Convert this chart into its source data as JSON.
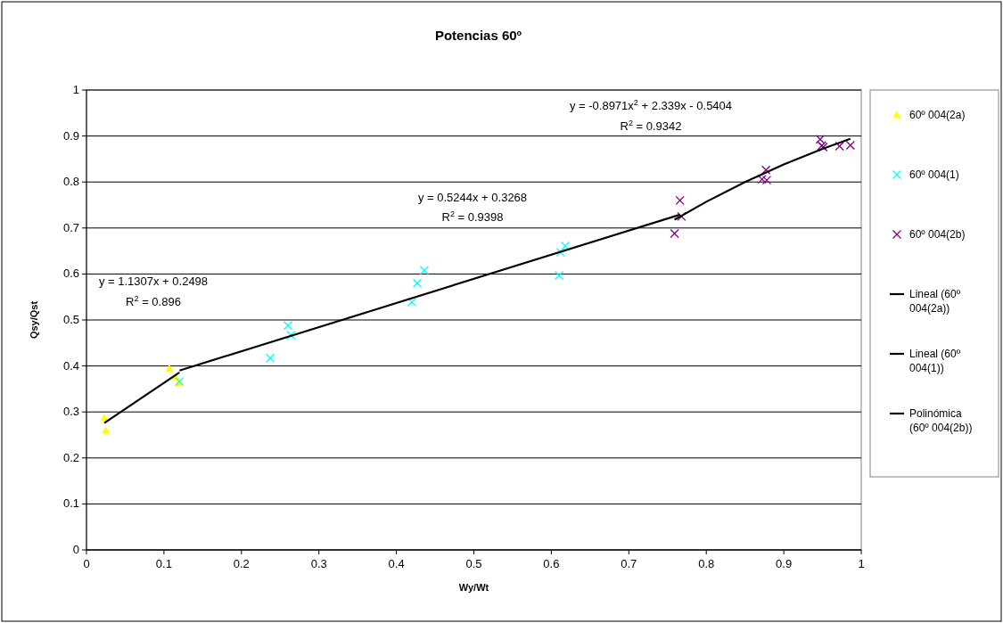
{
  "chart_data": {
    "type": "scatter",
    "title": "Potencias 60º",
    "xlabel": "Wy/Wt",
    "ylabel": "Qsy/Qst",
    "xlim": [
      0,
      1
    ],
    "ylim": [
      0,
      1
    ],
    "xticks": [
      0,
      0.1,
      0.2,
      0.3,
      0.4,
      0.5,
      0.6,
      0.7,
      0.8,
      0.9,
      1
    ],
    "yticks": [
      0,
      0.1,
      0.2,
      0.3,
      0.4,
      0.5,
      0.6,
      0.7,
      0.8,
      0.9,
      1
    ],
    "grid": "y",
    "legend": "right",
    "series": [
      {
        "name": "60º 004(2a)",
        "marker": "triangle",
        "color": "#ffff00",
        "x": [
          0.023,
          0.025,
          0.107,
          0.115,
          0.119
        ],
        "values": [
          0.287,
          0.26,
          0.395,
          0.376,
          0.364
        ]
      },
      {
        "name": "60º 004(1)",
        "marker": "cross",
        "color": "#00ffff",
        "x": [
          0.12,
          0.237,
          0.26,
          0.264,
          0.42,
          0.427,
          0.436,
          0.61,
          0.612,
          0.618
        ],
        "values": [
          0.366,
          0.417,
          0.488,
          0.467,
          0.539,
          0.58,
          0.608,
          0.597,
          0.647,
          0.661
        ]
      },
      {
        "name": "60º 004(2b)",
        "marker": "cross",
        "color": "#800080",
        "x": [
          0.759,
          0.766,
          0.768,
          0.872,
          0.877,
          0.878,
          0.947,
          0.949,
          0.951,
          0.972,
          0.986
        ],
        "values": [
          0.688,
          0.76,
          0.725,
          0.806,
          0.826,
          0.804,
          0.893,
          0.879,
          0.876,
          0.878,
          0.88
        ]
      },
      {
        "name": "Lineal (60º 004(2a))",
        "type": "line",
        "marker": "none",
        "color": "#000000",
        "x": [
          0.023,
          0.12
        ],
        "values": [
          0.276,
          0.386
        ]
      },
      {
        "name": "Lineal (60º 004(1))",
        "type": "line",
        "marker": "none",
        "color": "#000000",
        "x": [
          0.12,
          0.766
        ],
        "values": [
          0.39,
          0.729
        ]
      },
      {
        "name": "Polinómica (60º 004(2b))",
        "type": "line",
        "marker": "none",
        "color": "#000000",
        "x": [
          0.759,
          0.8,
          0.85,
          0.9,
          0.95,
          0.986
        ],
        "values": [
          0.718,
          0.757,
          0.8,
          0.838,
          0.872,
          0.894
        ]
      }
    ],
    "annotations": [
      "y = 1.1307x + 0.2498",
      "R$^{2}$ = 0.896",
      "y = 0.5244x + 0.3268",
      "R$^{2}$ = 0.9398",
      "y = -0.8971x$^{2}$ + 2.339x - 0.5404",
      "R$^{2}$ = 0.9342"
    ]
  }
}
